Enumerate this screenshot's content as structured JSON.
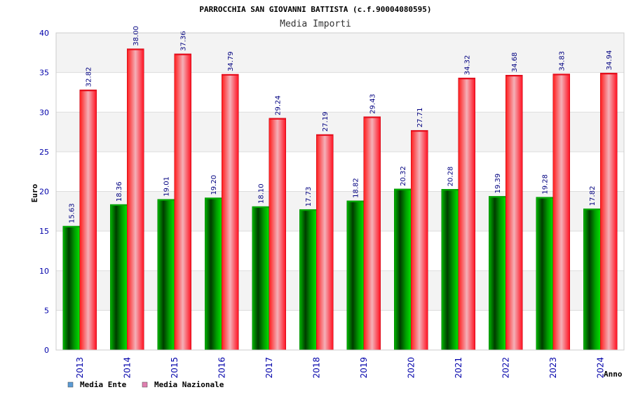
{
  "chart_data": {
    "type": "bar",
    "title": "PARROCCHIA SAN GIOVANNI BATTISTA (c.f.90004080595)",
    "subtitle": "Media Importi",
    "xlabel": "Anno",
    "ylabel": "Euro",
    "ylim": [
      0,
      40
    ],
    "yticks": [
      0,
      5,
      10,
      15,
      20,
      25,
      30,
      35,
      40
    ],
    "grid": true,
    "legend_position": "bottom-left",
    "categories": [
      "2013",
      "2014",
      "2015",
      "2016",
      "2017",
      "2018",
      "2019",
      "2020",
      "2021",
      "2022",
      "2023",
      "2024"
    ],
    "series": [
      {
        "name": "Media Ente",
        "color": "#00aa00",
        "legend_color": "#5b9bd5",
        "values": [
          15.63,
          18.36,
          19.01,
          19.2,
          18.1,
          17.73,
          18.82,
          20.32,
          20.28,
          19.39,
          19.28,
          17.82
        ],
        "labels": [
          "15.63",
          "18.36",
          "19.01",
          "19.20",
          "18.10",
          "17.73",
          "18.82",
          "20.32",
          "20.28",
          "19.39",
          "19.28",
          "17.82"
        ]
      },
      {
        "name": "Media Nazionale",
        "color": "#e8101e",
        "legend_color": "#e07fb0",
        "values": [
          32.82,
          38.0,
          37.36,
          34.79,
          29.24,
          27.19,
          29.43,
          27.71,
          34.32,
          34.68,
          34.83,
          34.94
        ],
        "labels": [
          "32.82",
          "38.00",
          "37.36",
          "34.79",
          "29.24",
          "27.19",
          "29.43",
          "27.71",
          "34.32",
          "34.68",
          "34.83",
          "34.94"
        ]
      }
    ]
  }
}
